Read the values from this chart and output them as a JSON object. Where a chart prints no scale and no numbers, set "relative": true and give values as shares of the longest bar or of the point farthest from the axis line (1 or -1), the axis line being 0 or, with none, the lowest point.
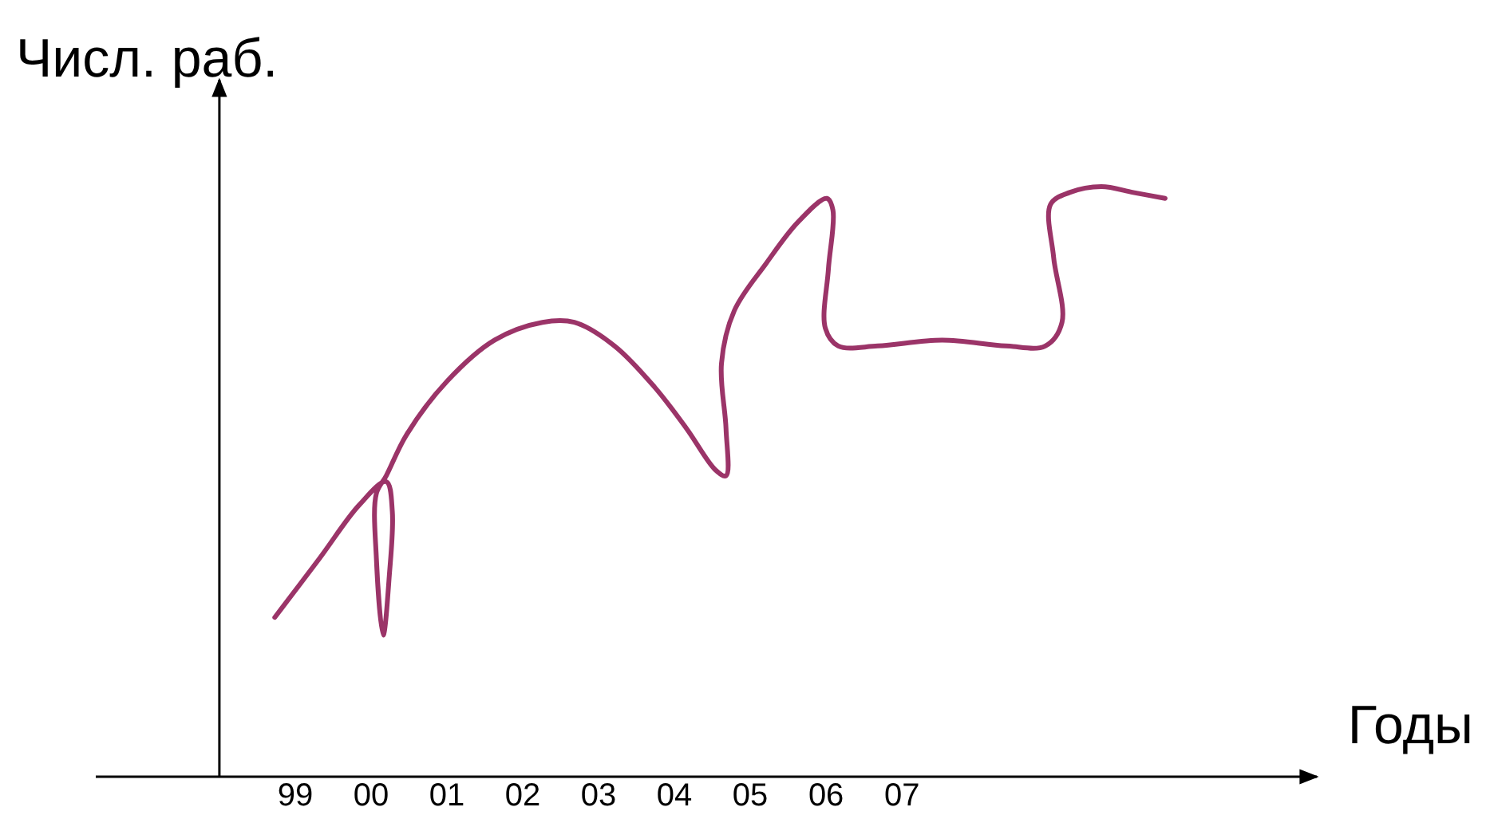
{
  "chart_data": {
    "type": "line",
    "relative": true,
    "xlabel": "Годы",
    "ylabel": "Числ. раб.",
    "xlim": [
      1996.37,
      2012.47
    ],
    "xticks": [
      {
        "value": 1999,
        "label": "99"
      },
      {
        "value": 2000,
        "label": "00"
      },
      {
        "value": 2001,
        "label": "01"
      },
      {
        "value": 2002,
        "label": "02"
      },
      {
        "value": 2003,
        "label": "03"
      },
      {
        "value": 2004,
        "label": "04"
      },
      {
        "value": 2005,
        "label": "05"
      },
      {
        "value": 2006,
        "label": "06"
      },
      {
        "value": 2007,
        "label": "07"
      }
    ],
    "ref_lines": [
      {
        "axis": "x",
        "value": 1998,
        "color": "#000000"
      }
    ],
    "series": [
      {
        "color": "#9b3468",
        "x": [
          1998.73,
          1999.32,
          1999.84,
          2000.2,
          2000.28,
          2000.24,
          2000.16,
          2000.07,
          2000.07,
          2000.2,
          2000.47,
          2001.0,
          2001.63,
          2002.26,
          2002.68,
          2003.21,
          2003.74,
          2004.16,
          2004.54,
          2004.68,
          2004.68,
          2004.62,
          2004.79,
          2005.21,
          2005.63,
          2006.01,
          2006.09,
          2006.03,
          2005.99,
          2006.16,
          2006.68,
          2007.53,
          2008.37,
          2008.89,
          2009.11,
          2009.0,
          2008.96,
          2009.21,
          2009.63,
          2010.05,
          2010.47
        ],
        "values": [
          0.27,
          0.37,
          0.46,
          0.5,
          0.45,
          0.34,
          0.24,
          0.37,
          0.48,
          0.51,
          0.58,
          0.67,
          0.74,
          0.77,
          0.77,
          0.73,
          0.66,
          0.59,
          0.52,
          0.51,
          0.59,
          0.7,
          0.79,
          0.87,
          0.94,
          0.98,
          0.96,
          0.86,
          0.76,
          0.73,
          0.73,
          0.74,
          0.73,
          0.73,
          0.77,
          0.88,
          0.97,
          0.99,
          1.0,
          0.99,
          0.98
        ]
      }
    ]
  }
}
